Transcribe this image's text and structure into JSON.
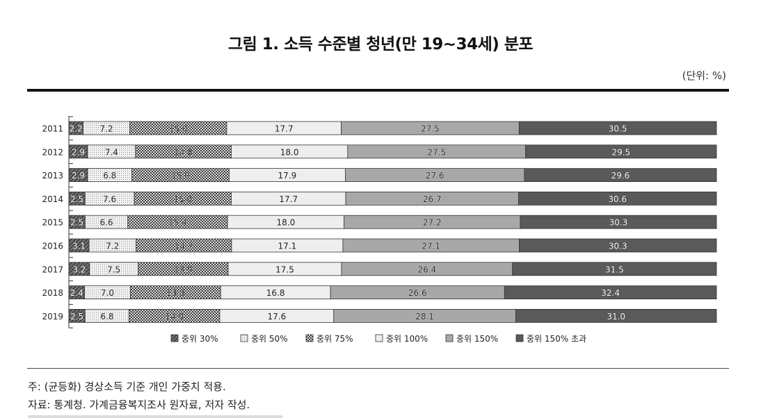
{
  "title": "그림 1. 소득 수준별 청년(만 19~34세) 분포",
  "unit": "(단위: %)",
  "notes": {
    "note": "주: (균등화) 경상소득 기준 개인 가중치 적용.",
    "source": "자료: 통계청. 가계금융복지조사 원자료, 저자 작성."
  },
  "chart_data": {
    "type": "bar",
    "orientation": "horizontal",
    "stacked": true,
    "categories": [
      "2011",
      "2012",
      "2013",
      "2014",
      "2015",
      "2016",
      "2017",
      "2018",
      "2019"
    ],
    "series": [
      {
        "name": "중위 30%",
        "color": "#555555",
        "pattern": "hatch",
        "values": [
          2.2,
          2.9,
          2.9,
          2.5,
          2.5,
          3.1,
          3.2,
          2.4,
          2.5
        ],
        "labels": [
          "2.2",
          "2.9",
          "2.9",
          "2.5",
          "2.5",
          "3.1",
          "3.2",
          "2.4",
          "2.5"
        ]
      },
      {
        "name": "중위 50%",
        "color": "#e6e6e6",
        "pattern": "dots",
        "values": [
          7.2,
          7.4,
          6.8,
          7.6,
          6.6,
          7.2,
          7.5,
          7.0,
          6.8
        ],
        "labels": [
          "7.2",
          "7.4",
          "6.8",
          "7.6",
          "6.6",
          "7.2",
          "7.5",
          "7.0",
          "6.8"
        ]
      },
      {
        "name": "중위 75%",
        "color": "#bdbdbd",
        "pattern": "check",
        "values": [
          15.0,
          14.8,
          15.0,
          15.0,
          15.4,
          14.7,
          13.9,
          13.8,
          14.0
        ],
        "labels": [
          "15.0",
          "14.8",
          "15.0",
          "15.0",
          "15.4",
          "14.7",
          "13.9",
          "13.8",
          "14.0"
        ]
      },
      {
        "name": "중위 100%",
        "color": "#eeeeee",
        "pattern": "solid",
        "values": [
          17.7,
          18.0,
          17.9,
          17.7,
          18.0,
          17.1,
          17.5,
          16.8,
          17.6
        ],
        "labels": [
          "17.7",
          "18.0",
          "17.9",
          "17.7",
          "18.0",
          "17.1",
          "17.5",
          "16.8",
          "17.6"
        ]
      },
      {
        "name": "중위 150%",
        "color": "#a8a8a8",
        "pattern": "solid",
        "values": [
          27.5,
          27.5,
          27.6,
          26.7,
          27.2,
          27.1,
          26.4,
          26.6,
          28.1
        ],
        "labels": [
          "27.5",
          "27.5",
          "27.6",
          "26.7",
          "27.2",
          "27.1",
          "26.4",
          "26.6",
          "28.1"
        ]
      },
      {
        "name": "중위 150% 초과",
        "color": "#5a5a5a",
        "pattern": "solid",
        "values": [
          30.5,
          29.5,
          29.6,
          30.6,
          30.3,
          30.3,
          31.5,
          32.4,
          31.0
        ],
        "labels": [
          "30.5",
          "29.5",
          "29.6",
          "30.6",
          "30.3",
          "30.3",
          "31.5",
          "32.4",
          "31.0"
        ]
      }
    ],
    "xlim": [
      0,
      100
    ],
    "legend_position": "bottom"
  }
}
